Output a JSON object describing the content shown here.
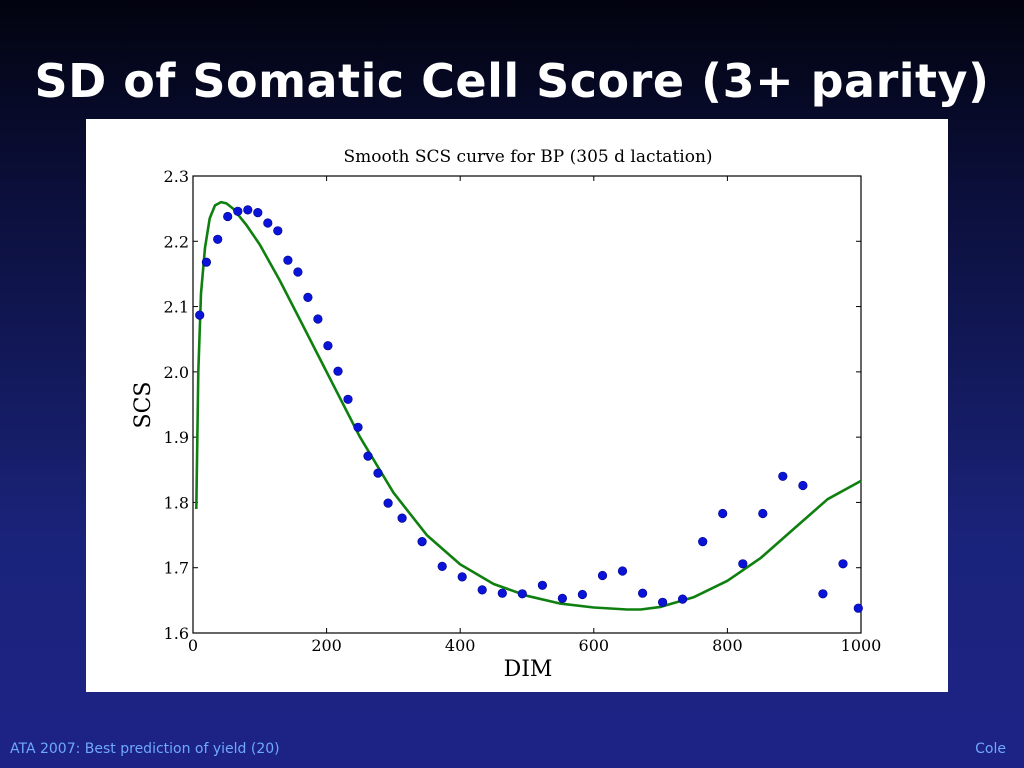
{
  "slide": {
    "title": "SD of Somatic Cell Score (3+ parity)",
    "footer_left": "ATA 2007: Best prediction of yield (20)",
    "footer_right": "Cole"
  },
  "colors": {
    "points": "#0a14d8",
    "curve": "#0f8010",
    "text": "#ffffff",
    "footer": "#6fa8ff"
  },
  "chart_data": {
    "type": "scatter",
    "title": "Smooth SCS curve for BP (305 d lactation)",
    "xlabel": "DIM",
    "ylabel": "SCS",
    "xlim": [
      0,
      1000
    ],
    "ylim": [
      1.6,
      2.3
    ],
    "x_ticks": [
      "0",
      "200",
      "400",
      "600",
      "800",
      "1000"
    ],
    "y_ticks": [
      "1.6",
      "1.7",
      "1.8",
      "1.9",
      "2.0",
      "2.1",
      "2.2",
      "2.3"
    ],
    "grid": false,
    "legend": "none",
    "series": [
      {
        "kind": "points",
        "x": [
          10,
          20,
          37,
          52,
          67,
          82,
          97,
          112,
          127,
          142,
          157,
          172,
          187,
          202,
          217,
          232,
          247,
          262,
          277,
          292,
          313,
          343,
          373,
          403,
          433,
          463,
          493,
          523,
          553,
          583,
          613,
          643,
          673,
          703,
          733,
          763,
          793,
          823,
          853,
          883,
          913,
          943,
          973,
          996
        ],
        "y": [
          2.087,
          2.168,
          2.203,
          2.238,
          2.246,
          2.248,
          2.244,
          2.228,
          2.216,
          2.171,
          2.153,
          2.114,
          2.081,
          2.04,
          2.001,
          1.958,
          1.915,
          1.871,
          1.845,
          1.799,
          1.776,
          1.74,
          1.702,
          1.686,
          1.666,
          1.661,
          1.66,
          1.673,
          1.653,
          1.659,
          1.688,
          1.695,
          1.661,
          1.647,
          1.652,
          1.74,
          1.783,
          1.706,
          1.783,
          1.84,
          1.826,
          1.66,
          1.706,
          1.638
        ]
      },
      {
        "kind": "line",
        "x": [
          5,
          8,
          12,
          18,
          25,
          33,
          42,
          50,
          60,
          80,
          100,
          130,
          160,
          200,
          250,
          300,
          350,
          400,
          450,
          500,
          550,
          600,
          650,
          670,
          700,
          750,
          800,
          850,
          900,
          950,
          1000
        ],
        "y": [
          1.79,
          2.0,
          2.12,
          2.19,
          2.235,
          2.255,
          2.26,
          2.258,
          2.25,
          2.225,
          2.195,
          2.14,
          2.08,
          2.0,
          1.9,
          1.815,
          1.75,
          1.705,
          1.675,
          1.657,
          1.645,
          1.639,
          1.636,
          1.636,
          1.64,
          1.655,
          1.68,
          1.715,
          1.76,
          1.805,
          1.833
        ]
      }
    ]
  }
}
